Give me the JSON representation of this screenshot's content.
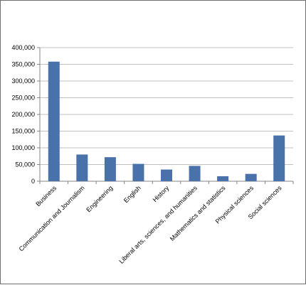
{
  "chart_data": {
    "type": "bar",
    "title": "",
    "xlabel": "",
    "ylabel": "",
    "categories": [
      "Business",
      "Communication and Journalism",
      "Engineering",
      "English",
      "History",
      "Liberal arts, sciences, and humanities",
      "Mathematics and statistics",
      "Physical sciences",
      "Social sciences"
    ],
    "values": [
      358000,
      80000,
      72000,
      52000,
      35000,
      46000,
      15000,
      22000,
      137000
    ],
    "ylim": [
      0,
      400000
    ],
    "yticks": [
      0,
      50000,
      100000,
      150000,
      200000,
      250000,
      300000,
      350000,
      400000
    ],
    "ytick_labels": [
      "0",
      "50,000",
      "100,000",
      "150,000",
      "200,000",
      "250,000",
      "300,000",
      "350,000",
      "400,000"
    ],
    "grid": true,
    "legend": "none",
    "bar_color": "#4a72aa",
    "grid_color": "#c0c0c0",
    "axis_color": "#868686"
  }
}
